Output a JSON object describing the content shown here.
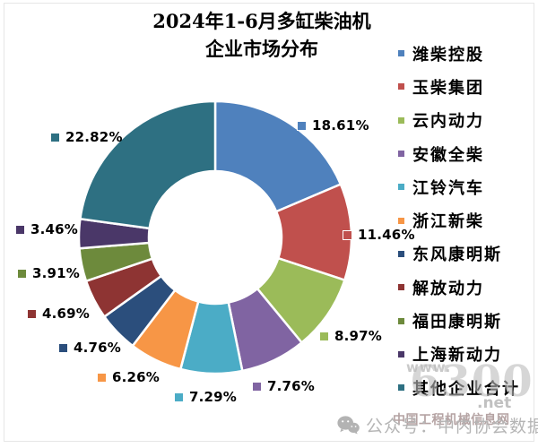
{
  "title": {
    "line1": "2024年1-6月多缸柴油机",
    "line2": "企业市场分布"
  },
  "chart_data": {
    "type": "pie",
    "donut": true,
    "hole_ratio": 0.49,
    "start_angle_deg": 0,
    "direction": "clockwise",
    "legend_position": "right",
    "title": "2024年1-6月多缸柴油机企业市场分布",
    "series": [
      {
        "name": "潍柴控股",
        "value": 18.61,
        "label": "18.61%",
        "color": "#4F81BD"
      },
      {
        "name": "玉柴集团",
        "value": 11.46,
        "label": "11.46%",
        "color": "#C0504D"
      },
      {
        "name": "云内动力",
        "value": 8.97,
        "label": "8.97%",
        "color": "#9BBB59"
      },
      {
        "name": "安徽全柴",
        "value": 7.76,
        "label": "7.76%",
        "color": "#8064A2"
      },
      {
        "name": "江铃汽车",
        "value": 7.29,
        "label": "7.29%",
        "color": "#4BACC6"
      },
      {
        "name": "浙江新柴",
        "value": 6.26,
        "label": "6.26%",
        "color": "#F79646"
      },
      {
        "name": "东风康明斯",
        "value": 4.76,
        "label": "4.76%",
        "color": "#2B4E7C"
      },
      {
        "name": "解放动力",
        "value": 4.69,
        "label": "4.69%",
        "color": "#8E3433"
      },
      {
        "name": "福田康明斯",
        "value": 3.91,
        "label": "3.91%",
        "color": "#6D8A3C"
      },
      {
        "name": "上海新动力",
        "value": 3.46,
        "label": "3.46%",
        "color": "#4A3768"
      },
      {
        "name": "其他企业合计",
        "value": 22.82,
        "label": "22.82%",
        "color": "#2E7082"
      }
    ]
  },
  "watermark": {
    "www": "www.",
    "logo": "6300",
    "net": ".net",
    "site": "中国工程机械信息网"
  },
  "footer": {
    "wechat_text": "公众号：中内协会数据"
  }
}
